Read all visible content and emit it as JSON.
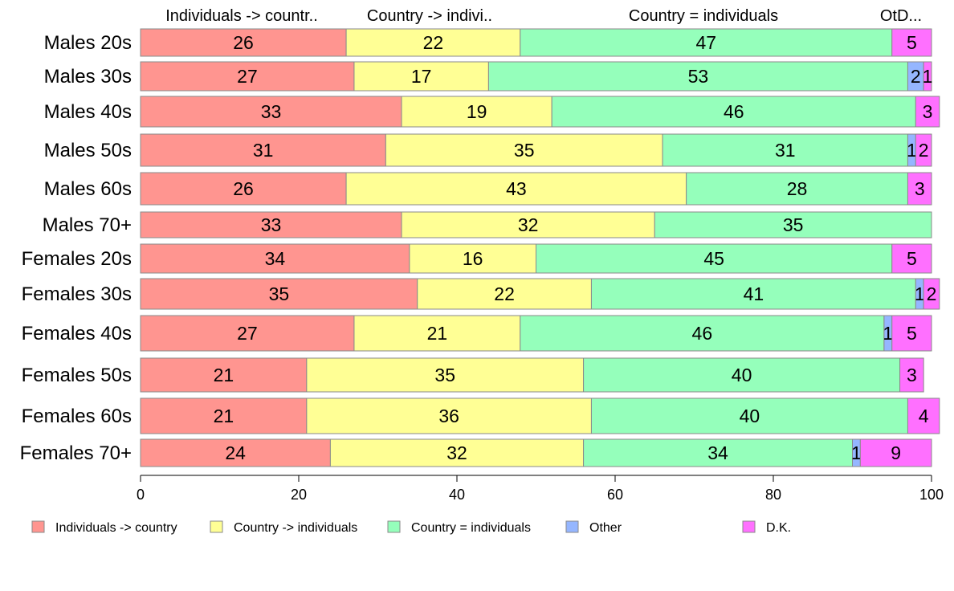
{
  "chart_data": {
    "type": "bar",
    "orientation": "horizontal",
    "stacked": true,
    "categories": [
      "Males 20s",
      "Males 30s",
      "Males 40s",
      "Males 50s",
      "Males 60s",
      "Males 70+",
      "Females 20s",
      "Females 30s",
      "Females 40s",
      "Females 50s",
      "Females 60s",
      "Females 70+"
    ],
    "series": [
      {
        "name": "Individuals -> country",
        "color": "#ff9590",
        "values": [
          26,
          27,
          33,
          31,
          26,
          33,
          34,
          35,
          27,
          21,
          21,
          24
        ]
      },
      {
        "name": "Country -> individuals",
        "color": "#ffff95",
        "values": [
          22,
          17,
          19,
          35,
          43,
          32,
          16,
          22,
          21,
          35,
          36,
          32
        ]
      },
      {
        "name": "Country = individuals",
        "color": "#95ffbb",
        "values": [
          47,
          53,
          46,
          31,
          28,
          35,
          45,
          41,
          46,
          40,
          40,
          34
        ]
      },
      {
        "name": "Other",
        "color": "#95b6ff",
        "values": [
          0,
          2,
          0,
          1,
          0,
          0,
          0,
          1,
          1,
          0,
          0,
          1
        ]
      },
      {
        "name": "D.K.",
        "color": "#ff70ff",
        "values": [
          5,
          1,
          3,
          2,
          3,
          0,
          5,
          2,
          5,
          3,
          4,
          9
        ]
      }
    ],
    "top_labels": [
      "Individuals -> countr..",
      "Country -> indivi..",
      "Country = individuals",
      "OtD..."
    ],
    "xlim": [
      0,
      100
    ],
    "xticks": [
      "0",
      "20",
      "40",
      "60",
      "80",
      "100"
    ],
    "grid": false,
    "legend_position": "bottom"
  }
}
